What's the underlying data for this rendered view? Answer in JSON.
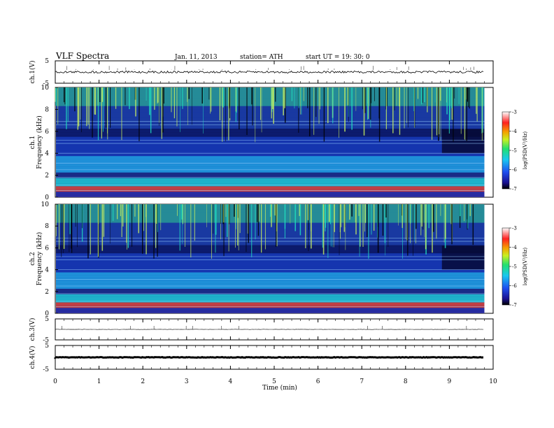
{
  "header": {
    "title": "VLF  Spectra",
    "date": "Jan.  11,  2013",
    "station": "station= ATH",
    "start": "start  UT  =    19: 30: 0"
  },
  "chart_data": {
    "type": "heatmap",
    "x": {
      "label": "Time  (min)",
      "range": [
        0,
        10
      ],
      "ticks": [
        "0",
        "1",
        "2",
        "3",
        "4",
        "5",
        "6",
        "7",
        "8",
        "9",
        "10"
      ],
      "data_end": 9.8
    },
    "waveform_panels": [
      {
        "id": "ch1",
        "ylabel": "ch.1(V)",
        "ticks": [
          "5",
          "-5"
        ],
        "range": [
          -5,
          5
        ],
        "level": 0
      },
      {
        "id": "ch3",
        "ylabel": "ch.3(V)",
        "ticks": [
          "5",
          "-5"
        ],
        "range": [
          -5,
          5
        ],
        "level": 0
      },
      {
        "id": "ch4",
        "ylabel": "ch.4(V)",
        "ticks": [
          "5",
          "-5"
        ],
        "range": [
          -5,
          5
        ],
        "level": 0
      }
    ],
    "spectrogram_panels": [
      {
        "id": "ch1",
        "ylabel_channel": "ch.1",
        "ylabel": "Frequency  (kHz)",
        "range": [
          0,
          10
        ],
        "ticks": [
          "0",
          "2",
          "4",
          "6",
          "8",
          "10"
        ]
      },
      {
        "id": "ch2",
        "ylabel_channel": "ch.2",
        "ylabel": "Frequency  (kHz)",
        "range": [
          0,
          10
        ],
        "ticks": [
          "0",
          "2",
          "4",
          "6",
          "8",
          "10"
        ]
      }
    ],
    "colorbar": {
      "label": "log(PSD(V²/Hz)",
      "range": [
        -7,
        -3
      ],
      "ticks": [
        "-3",
        "-4",
        "-5",
        "-6",
        "-7"
      ]
    }
  }
}
